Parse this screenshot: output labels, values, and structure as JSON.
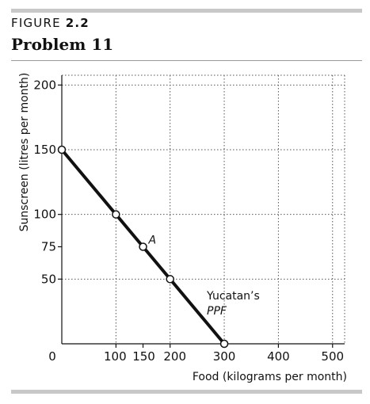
{
  "figure": {
    "prefix": "FIGURE",
    "number": "2.2",
    "subtitle": "Problem 11"
  },
  "chart_data": {
    "type": "line",
    "xlabel": "Food (kilograms per month)",
    "ylabel": "Sunscreen (litres per month)",
    "xlim": [
      0,
      520
    ],
    "ylim": [
      0,
      215
    ],
    "x_ticks": [
      0,
      100,
      150,
      200,
      300,
      400,
      500
    ],
    "x_tick_labels": [
      "0",
      "100",
      "150",
      "200",
      "300",
      "400",
      "500"
    ],
    "y_ticks": [
      50,
      75,
      100,
      150,
      200
    ],
    "y_tick_labels": [
      "50",
      "75",
      "100",
      "150",
      "200"
    ],
    "grid_x": [
      100,
      200,
      300,
      400,
      500
    ],
    "grid_y": [
      50,
      100,
      150,
      200
    ],
    "grid": true,
    "series": [
      {
        "points": [
          {
            "x": 0,
            "y": 150
          },
          {
            "x": 100,
            "y": 100
          },
          {
            "x": 150,
            "y": 75
          },
          {
            "x": 200,
            "y": 50
          },
          {
            "x": 300,
            "y": 0
          }
        ]
      }
    ],
    "annotations": {
      "point_a": {
        "label": "A",
        "x": 150,
        "y": 75
      },
      "ppf_line1": "Yucatan’s",
      "ppf_line2": "PPF"
    },
    "color": "#111111"
  }
}
